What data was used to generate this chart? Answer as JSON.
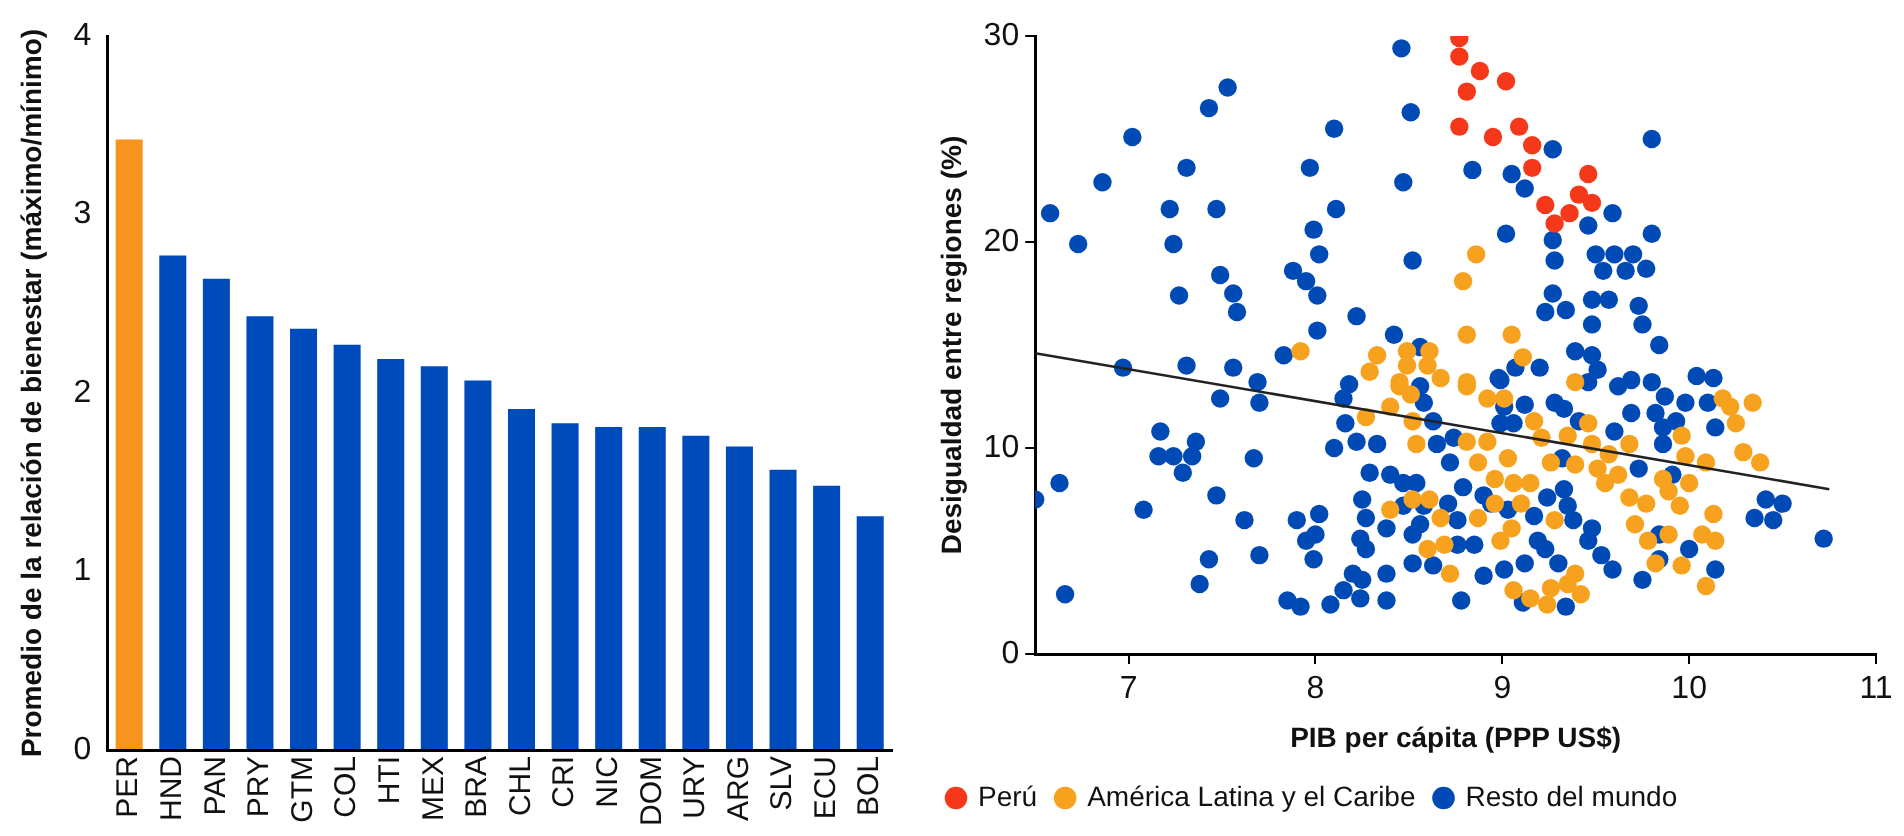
{
  "chart_data": [
    {
      "type": "bar",
      "ylabel": "Promedio de la relación de bienestar (máximo/mínimo)",
      "categories": [
        "PER",
        "HND",
        "PAN",
        "PRY",
        "GTM",
        "COL",
        "HTI",
        "MEX",
        "BRA",
        "CHL",
        "CRI",
        "NIC",
        "DOM",
        "URY",
        "ARG",
        "SLV",
        "ECU",
        "BOL"
      ],
      "values": [
        3.42,
        2.77,
        2.64,
        2.43,
        2.36,
        2.27,
        2.19,
        2.15,
        2.07,
        1.91,
        1.83,
        1.81,
        1.81,
        1.76,
        1.7,
        1.57,
        1.48,
        1.31
      ],
      "colors": [
        "#f7941d",
        "#004bbb",
        "#004bbb",
        "#004bbb",
        "#004bbb",
        "#004bbb",
        "#004bbb",
        "#004bbb",
        "#004bbb",
        "#004bbb",
        "#004bbb",
        "#004bbb",
        "#004bbb",
        "#004bbb",
        "#004bbb",
        "#004bbb",
        "#004bbb",
        "#004bbb"
      ],
      "ylim": [
        0,
        4
      ],
      "yticks": [
        0,
        1,
        2,
        3,
        4
      ]
    },
    {
      "type": "scatter",
      "xlabel": "PIB per cápita (PPP US$)",
      "ylabel": "Desigualdad entre regiones (%)",
      "xlim": [
        6.5,
        11
      ],
      "xticks": [
        7,
        8,
        9,
        10,
        11
      ],
      "ylim": [
        0,
        30
      ],
      "yticks": [
        0,
        10,
        20,
        30
      ],
      "legend": "bottom",
      "marker": "circle",
      "series": [
        {
          "name": "Perú",
          "color": "#f5371a",
          "x": [
            8.77,
            8.77,
            8.88,
            9.02,
            8.81,
            8.77,
            9.09,
            8.95,
            9.16,
            9.16,
            9.46,
            9.41,
            9.48,
            9.23,
            9.28,
            9.36
          ],
          "values": [
            29.9,
            29.0,
            28.3,
            27.8,
            27.3,
            25.6,
            25.6,
            25.1,
            24.7,
            23.6,
            23.3,
            22.3,
            21.9,
            21.8,
            20.9,
            21.4
          ]
        },
        {
          "name": "América Latina y el Caribe",
          "color": "#f7a21e",
          "x": [
            8.86,
            8.79,
            8.81,
            9.05,
            9.11,
            7.92,
            8.33,
            8.29,
            8.49,
            8.49,
            8.61,
            8.6,
            8.67,
            8.45,
            8.81,
            9.39,
            8.27,
            8.4,
            8.45,
            8.51,
            8.52,
            8.54,
            8.4,
            8.52,
            8.61,
            8.67,
            8.6,
            8.69,
            8.72,
            8.81,
            8.81,
            8.87,
            8.92,
            8.92,
            9.01,
            8.87,
            8.96,
            8.96,
            9.03,
            9.06,
            9.1,
            9.15,
            8.99,
            9.05,
            9.06,
            9.15,
            9.24,
            9.26,
            9.35,
            9.42,
            9.17,
            9.21,
            9.26,
            9.28,
            9.35,
            9.39,
            9.46,
            9.48,
            9.51,
            9.55,
            9.57,
            9.62,
            9.68,
            9.68,
            9.71,
            9.77,
            9.78,
            9.82,
            9.89,
            9.89,
            9.95,
            9.96,
            9.96,
            9.98,
            10.0,
            10.09,
            10.07,
            10.09,
            10.13,
            10.14,
            10.18,
            10.22,
            10.25,
            10.29,
            10.34,
            10.38,
            9.39,
            9.86
          ],
          "values": [
            19.4,
            18.1,
            15.5,
            15.5,
            14.4,
            14.7,
            14.5,
            13.7,
            14.7,
            14.0,
            14.7,
            14.0,
            13.4,
            13.2,
            13.2,
            13.2,
            11.5,
            12.0,
            13.0,
            12.6,
            11.3,
            10.2,
            7.0,
            7.5,
            7.5,
            6.6,
            5.1,
            5.3,
            3.9,
            13.0,
            10.3,
            9.3,
            10.3,
            12.4,
            12.4,
            6.6,
            8.5,
            7.3,
            9.5,
            8.3,
            7.3,
            8.3,
            5.5,
            6.1,
            3.1,
            2.7,
            2.4,
            3.2,
            3.4,
            2.9,
            11.3,
            10.5,
            9.3,
            6.5,
            10.6,
            9.2,
            11.2,
            10.2,
            9.0,
            8.3,
            9.7,
            8.7,
            10.2,
            7.6,
            6.3,
            7.3,
            5.5,
            4.4,
            7.9,
            5.8,
            7.2,
            10.6,
            4.3,
            9.6,
            8.3,
            9.3,
            5.8,
            3.3,
            6.8,
            5.5,
            12.4,
            12.0,
            11.2,
            9.8,
            12.2,
            9.3,
            3.9,
            8.5
          ]
        },
        {
          "name": "Resto del mundo",
          "color": "#004ab5",
          "x": [
            8.46,
            8.51,
            7.53,
            7.43,
            7.02,
            6.86,
            6.58,
            6.73,
            7.31,
            7.22,
            7.24,
            7.47,
            7.27,
            7.49,
            7.56,
            7.58,
            8.1,
            7.97,
            8.11,
            7.99,
            8.02,
            7.88,
            7.95,
            8.01,
            8.01,
            8.22,
            8.47,
            8.52,
            8.42,
            8.56,
            8.84,
            9.05,
            9.12,
            9.27,
            9.8,
            9.02,
            9.46,
            9.59,
            9.8,
            9.27,
            9.28,
            9.5,
            9.54,
            9.6,
            9.7,
            9.66,
            9.77,
            9.27,
            9.23,
            9.34,
            9.48,
            9.57,
            9.48,
            9.73,
            9.75,
            9.84,
            9.39,
            9.48,
            7.83,
            6.97,
            7.31,
            7.56,
            7.69,
            9.2,
            9.07,
            8.98,
            10.04,
            10.13,
            6.5,
            6.63,
            6.66,
            7.08,
            7.17,
            7.16,
            7.24,
            7.29,
            7.34,
            7.36,
            7.47,
            7.49,
            7.43,
            7.38,
            7.62,
            7.67,
            7.7,
            7.7,
            7.9,
            7.95,
            8.02,
            8.0,
            7.99,
            7.85,
            7.92,
            8.08,
            8.1,
            8.15,
            8.24,
            8.18,
            8.15,
            8.16,
            8.22,
            8.33,
            8.29,
            8.25,
            8.27,
            8.24,
            8.27,
            8.2,
            8.25,
            8.38,
            8.38,
            8.4,
            8.47,
            8.54,
            8.38,
            8.47,
            8.58,
            8.52,
            8.56,
            8.52,
            8.63,
            8.56,
            8.58,
            8.63,
            8.65,
            8.74,
            8.72,
            8.71,
            8.76,
            8.76,
            8.85,
            8.78,
            8.9,
            8.79,
            8.9,
            8.94,
            8.99,
            9.01,
            8.99,
            9.06,
            9.03,
            9.01,
            9.12,
            9.11,
            9.12,
            9.19,
            9.17,
            9.23,
            9.3,
            9.32,
            9.33,
            9.35,
            9.38,
            9.34,
            9.24,
            9.28,
            9.33,
            9.41,
            9.46,
            9.51,
            9.46,
            9.48,
            9.53,
            9.59,
            9.62,
            9.69,
            9.69,
            9.6,
            9.75,
            9.73,
            9.84,
            9.84,
            9.8,
            9.82,
            9.87,
            9.86,
            9.86,
            9.91,
            9.93,
            9.98,
            10.0,
            10.1,
            10.14,
            10.14,
            10.35,
            10.41,
            10.45,
            10.5,
            10.72
          ],
          "values": [
            29.4,
            26.3,
            27.5,
            26.5,
            25.1,
            22.9,
            21.4,
            19.9,
            23.6,
            21.6,
            19.9,
            21.6,
            17.4,
            18.4,
            17.5,
            16.6,
            25.5,
            23.6,
            21.6,
            20.6,
            19.4,
            18.6,
            18.1,
            17.4,
            15.7,
            16.4,
            22.9,
            19.1,
            15.5,
            14.9,
            23.5,
            23.3,
            22.6,
            24.5,
            25.0,
            20.4,
            20.8,
            21.4,
            20.4,
            20.1,
            19.1,
            19.4,
            18.6,
            19.4,
            19.4,
            18.6,
            18.7,
            17.5,
            16.6,
            16.7,
            17.2,
            17.2,
            16.0,
            16.9,
            16.0,
            15.0,
            14.7,
            14.5,
            14.5,
            13.9,
            14.0,
            13.9,
            13.2,
            13.9,
            13.9,
            13.4,
            13.5,
            13.4,
            7.5,
            8.3,
            2.9,
            7.0,
            10.8,
            9.6,
            9.6,
            8.8,
            9.6,
            10.3,
            7.7,
            12.4,
            4.6,
            3.4,
            6.5,
            9.5,
            4.8,
            12.2,
            6.5,
            5.5,
            6.8,
            5.8,
            4.6,
            2.6,
            2.3,
            2.4,
            10.0,
            3.1,
            2.7,
            13.1,
            12.4,
            11.2,
            10.3,
            10.2,
            8.8,
            7.5,
            6.6,
            5.6,
            5.1,
            3.9,
            3.6,
            3.9,
            2.6,
            8.7,
            8.3,
            8.3,
            6.1,
            7.2,
            7.2,
            5.8,
            6.3,
            4.4,
            4.3,
            13.0,
            12.2,
            11.3,
            10.2,
            10.5,
            9.3,
            7.3,
            6.5,
            5.3,
            5.3,
            2.6,
            3.8,
            8.1,
            7.7,
            7.3,
            13.3,
            12.0,
            11.2,
            11.2,
            7.0,
            4.1,
            4.4,
            2.5,
            12.1,
            5.5,
            6.7,
            5.1,
            4.4,
            9.5,
            8.0,
            7.2,
            6.5,
            2.3,
            7.6,
            12.2,
            11.9,
            11.3,
            13.2,
            13.8,
            5.5,
            6.1,
            4.8,
            4.1,
            13.0,
            13.3,
            11.7,
            10.8,
            3.6,
            9.0,
            5.8,
            4.6,
            13.2,
            11.7,
            12.5,
            11.0,
            10.2,
            8.7,
            11.3,
            12.2,
            5.1,
            12.2,
            11.0,
            4.1,
            6.6,
            7.5,
            6.5,
            7.3,
            5.6
          ]
        },
        {
          "type": "line",
          "marker": "none",
          "color": "#222222",
          "x": [
            6.5,
            10.75
          ],
          "values": [
            14.6,
            8.0
          ]
        }
      ]
    }
  ]
}
